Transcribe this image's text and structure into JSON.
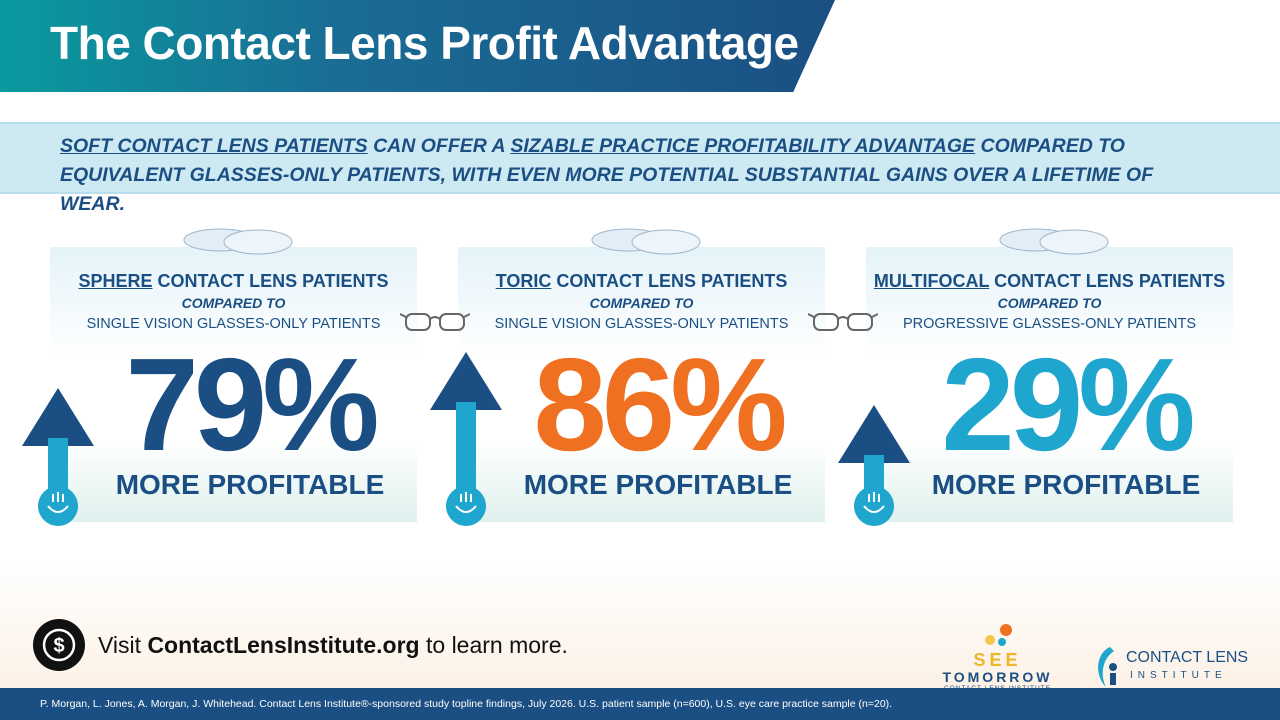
{
  "header": {
    "title": "The Contact Lens Profit Advantage"
  },
  "banner": {
    "parts": [
      "SOFT CONTACT LENS PATIENTS",
      "CAN OFFER A",
      "SIZABLE PRACTICE PROFITABILITY ADVANTAGE",
      "COMPARED TO",
      "EQUIVALENT GLASSES-ONLY PATIENTS, WITH EVEN MORE POTENTIAL SUBSTANTIAL GAINS OVER A LIFETIME OF WEAR."
    ]
  },
  "cards": [
    {
      "highlight": "SPHERE",
      "heading": "CONTACT LENS PATIENTS",
      "compared": "COMPARED TO",
      "comparison": "SINGLE VISION GLASSES-ONLY PATIENTS",
      "percent": "79%",
      "caption": "MORE PROFITABLE"
    },
    {
      "highlight": "TORIC",
      "heading": "CONTACT LENS PATIENTS",
      "compared": "COMPARED TO",
      "comparison": "SINGLE VISION GLASSES-ONLY PATIENTS",
      "percent": "86%",
      "caption": "MORE PROFITABLE"
    },
    {
      "highlight": "MULTIFOCAL",
      "heading": "CONTACT LENS PATIENTS",
      "compared": "COMPARED TO",
      "comparison": "PROGRESSIVE GLASSES-ONLY PATIENTS",
      "percent": "29%",
      "caption": "MORE PROFITABLE"
    }
  ],
  "footer": {
    "visit": "Visit",
    "site": "ContactLensInstitute.org",
    "rest": "to learn more.",
    "logo1": {
      "line1": "SEE",
      "line2": "TOMORROW",
      "line3": "CONTACT LENS INSTITUTE"
    },
    "logo2": {
      "line1": "CONTACT LENS",
      "line2": "INSTITUTE"
    },
    "citation": "P. Morgan, L. Jones, A. Morgan, J. Whitehead. Contact Lens Institute®-sponsored study topline findings, July 2026. U.S. patient sample (n=600), U.S. eye care practice sample (n=20)."
  }
}
